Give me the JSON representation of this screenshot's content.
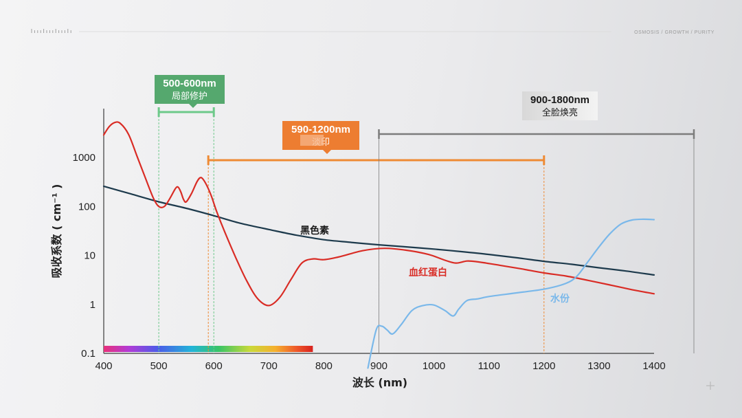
{
  "header": {
    "nav": [
      "OSMOSIS",
      "GROWTH",
      "PURITY"
    ],
    "separator": "/"
  },
  "chart_data": {
    "type": "line",
    "xlabel": "波长 (nm)",
    "ylabel": "吸收系数 ( cm⁻¹ )",
    "x_ticks": [
      400,
      500,
      600,
      700,
      800,
      900,
      1000,
      1100,
      1200,
      1300,
      1400
    ],
    "y_ticks": [
      0.1,
      1,
      10,
      100,
      1000
    ],
    "y_tick_labels": [
      "0.1",
      "1",
      "10",
      "100",
      "1000"
    ],
    "xlim": [
      400,
      1400
    ],
    "ylim": [
      0.1,
      10000
    ],
    "y_scale": "log",
    "spectrum_bar": {
      "x_range": [
        400,
        780
      ]
    },
    "series": [
      {
        "name": "黑色素",
        "color": "#1d3a4c",
        "points": [
          [
            400,
            260
          ],
          [
            450,
            180
          ],
          [
            500,
            125
          ],
          [
            550,
            92
          ],
          [
            600,
            65
          ],
          [
            650,
            45
          ],
          [
            700,
            34
          ],
          [
            750,
            26
          ],
          [
            800,
            21
          ],
          [
            850,
            18.5
          ],
          [
            900,
            16.5
          ],
          [
            950,
            15
          ],
          [
            1000,
            13.5
          ],
          [
            1050,
            12
          ],
          [
            1100,
            10.5
          ],
          [
            1150,
            9
          ],
          [
            1200,
            7.6
          ],
          [
            1250,
            6.6
          ],
          [
            1300,
            5.6
          ],
          [
            1350,
            4.8
          ],
          [
            1400,
            4
          ]
        ]
      },
      {
        "name": "血红蛋白",
        "color": "#d92c25",
        "points": [
          [
            400,
            2900
          ],
          [
            410,
            4300
          ],
          [
            420,
            5200
          ],
          [
            430,
            5000
          ],
          [
            445,
            3000
          ],
          [
            460,
            1100
          ],
          [
            475,
            400
          ],
          [
            490,
            150
          ],
          [
            500,
            100
          ],
          [
            510,
            100
          ],
          [
            520,
            145
          ],
          [
            530,
            230
          ],
          [
            535,
            250
          ],
          [
            540,
            200
          ],
          [
            545,
            140
          ],
          [
            550,
            125
          ],
          [
            560,
            190
          ],
          [
            570,
            330
          ],
          [
            577,
            390
          ],
          [
            585,
            300
          ],
          [
            595,
            170
          ],
          [
            605,
            80
          ],
          [
            620,
            30
          ],
          [
            640,
            9
          ],
          [
            660,
            3
          ],
          [
            680,
            1.3
          ],
          [
            700,
            0.95
          ],
          [
            720,
            1.4
          ],
          [
            740,
            3.2
          ],
          [
            760,
            7
          ],
          [
            780,
            8.5
          ],
          [
            800,
            8.2
          ],
          [
            830,
            9.5
          ],
          [
            870,
            12.5
          ],
          [
            910,
            14
          ],
          [
            950,
            12.8
          ],
          [
            990,
            10.5
          ],
          [
            1020,
            8
          ],
          [
            1040,
            7
          ],
          [
            1060,
            7.7
          ],
          [
            1080,
            7.4
          ],
          [
            1120,
            6.3
          ],
          [
            1160,
            5.3
          ],
          [
            1200,
            4.4
          ],
          [
            1240,
            3.8
          ],
          [
            1280,
            3.1
          ],
          [
            1320,
            2.5
          ],
          [
            1360,
            2
          ],
          [
            1400,
            1.65
          ]
        ]
      },
      {
        "name": "水份",
        "color": "#7ab8ea",
        "points": [
          [
            880,
            0.05
          ],
          [
            895,
            0.3
          ],
          [
            905,
            0.36
          ],
          [
            915,
            0.3
          ],
          [
            925,
            0.25
          ],
          [
            940,
            0.38
          ],
          [
            960,
            0.75
          ],
          [
            980,
            0.95
          ],
          [
            1000,
            0.97
          ],
          [
            1020,
            0.75
          ],
          [
            1035,
            0.58
          ],
          [
            1045,
            0.8
          ],
          [
            1060,
            1.2
          ],
          [
            1080,
            1.3
          ],
          [
            1100,
            1.45
          ],
          [
            1150,
            1.72
          ],
          [
            1200,
            2.05
          ],
          [
            1240,
            2.7
          ],
          [
            1260,
            3.8
          ],
          [
            1280,
            7.5
          ],
          [
            1300,
            15
          ],
          [
            1320,
            28
          ],
          [
            1340,
            44
          ],
          [
            1360,
            53
          ],
          [
            1380,
            55
          ],
          [
            1400,
            54
          ]
        ]
      }
    ],
    "ranges": [
      {
        "name": "range-500-600",
        "title": "500-600nm",
        "subtitle": "局部修护",
        "x_range": [
          500,
          600
        ],
        "color": "#6dc98a",
        "box_color": "#55a86e"
      },
      {
        "name": "range-590-1200",
        "title": "590-1200nm",
        "subtitle": "淡印",
        "x_range": [
          590,
          1200
        ],
        "color": "#ee8a34",
        "box_color": "#ed7d31"
      },
      {
        "name": "range-900-1800",
        "title": "900-1800nm",
        "subtitle": "全脸焕亮",
        "x_range": [
          900,
          1800
        ],
        "color": "#7c7c7c",
        "box_color": "#eeeeee"
      }
    ]
  }
}
